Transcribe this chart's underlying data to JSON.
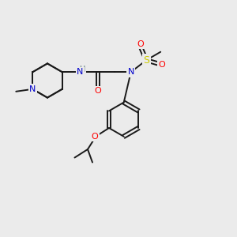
{
  "bg_color": "#ebebeb",
  "bond_color": "#1a1a1a",
  "N_color": "#0000cc",
  "O_color": "#ff0000",
  "S_color": "#cccc00",
  "figsize": [
    3.0,
    3.0
  ],
  "dpi": 100,
  "xlim": [
    0,
    10
  ],
  "ylim": [
    0,
    10
  ]
}
